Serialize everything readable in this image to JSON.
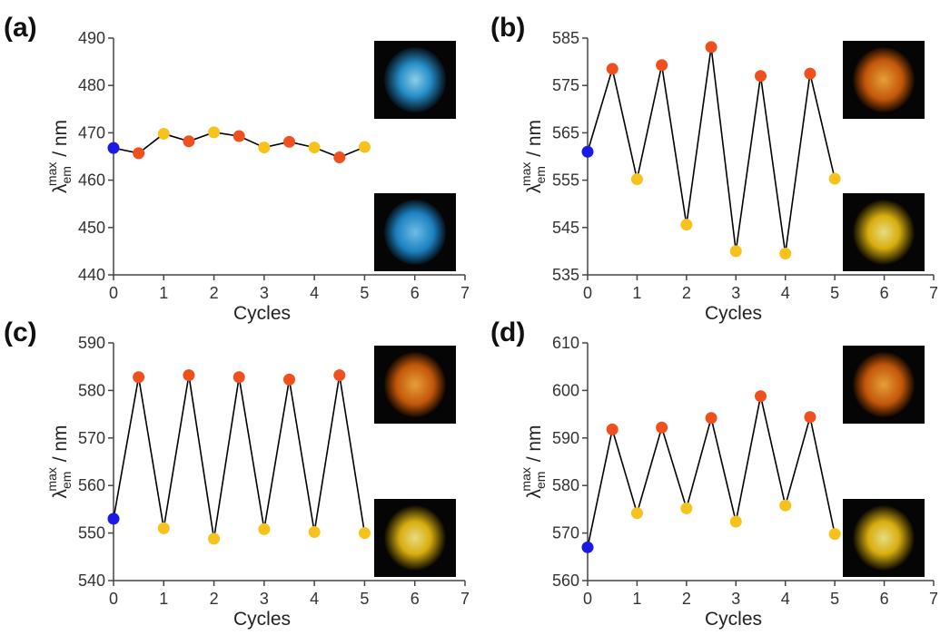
{
  "chart_data": [
    {
      "type": "line",
      "panel_label": "(a)",
      "xlabel": "Cycles",
      "ylabel_symbol": "λ",
      "ylabel_sub": "em",
      "ylabel_sup": "max",
      "ylabel_unit": " / nm",
      "x": [
        0,
        0.5,
        1,
        1.5,
        2,
        2.5,
        3,
        3.5,
        4,
        4.5,
        5
      ],
      "series": [
        {
          "color": "#000000",
          "values": [
            466.8,
            465.7,
            469.8,
            468.2,
            470.1,
            469.3,
            466.9,
            468.1,
            466.9,
            464.8,
            467.0
          ],
          "point_colors": [
            "#1a1ae6",
            "#f0501e",
            "#f7c21c",
            "#f0501e",
            "#f7c21c",
            "#f0501e",
            "#f7c21c",
            "#f0501e",
            "#f7c21c",
            "#f0501e",
            "#f7c21c"
          ]
        }
      ],
      "xlim": [
        0,
        7
      ],
      "xticks": [
        0,
        1,
        2,
        3,
        4,
        5,
        6,
        7
      ],
      "ylim": [
        440,
        490
      ],
      "yticks": [
        440,
        450,
        460,
        470,
        480,
        490
      ]
    },
    {
      "type": "line",
      "panel_label": "(b)",
      "xlabel": "Cycles",
      "ylabel_symbol": "λ",
      "ylabel_sub": "em",
      "ylabel_sup": "max",
      "ylabel_unit": " / nm",
      "x": [
        0,
        0.5,
        1,
        1.5,
        2,
        2.5,
        3,
        3.5,
        4,
        4.5,
        5
      ],
      "series": [
        {
          "color": "#000000",
          "values": [
            561.0,
            578.5,
            555.2,
            579.3,
            545.6,
            583.1,
            540.0,
            577.0,
            539.5,
            577.5,
            555.3
          ],
          "point_colors": [
            "#1a1ae6",
            "#f0501e",
            "#f7c21c",
            "#f0501e",
            "#f7c21c",
            "#f0501e",
            "#f7c21c",
            "#f0501e",
            "#f7c21c",
            "#f0501e",
            "#f7c21c"
          ]
        }
      ],
      "xlim": [
        0,
        7
      ],
      "xticks": [
        0,
        1,
        2,
        3,
        4,
        5,
        6,
        7
      ],
      "ylim": [
        535,
        585
      ],
      "yticks": [
        535,
        545,
        555,
        565,
        575,
        585
      ]
    },
    {
      "type": "line",
      "panel_label": "(c)",
      "xlabel": "Cycles",
      "ylabel_symbol": "λ",
      "ylabel_sub": "em",
      "ylabel_sup": "max",
      "ylabel_unit": " / nm",
      "x": [
        0,
        0.5,
        1,
        1.5,
        2,
        2.5,
        3,
        3.5,
        4,
        4.5,
        5
      ],
      "series": [
        {
          "color": "#000000",
          "values": [
            553.0,
            582.8,
            551.0,
            583.2,
            548.8,
            582.8,
            550.8,
            582.3,
            550.2,
            583.2,
            550.0
          ],
          "point_colors": [
            "#1a1ae6",
            "#f0501e",
            "#f7c21c",
            "#f0501e",
            "#f7c21c",
            "#f0501e",
            "#f7c21c",
            "#f0501e",
            "#f7c21c",
            "#f0501e",
            "#f7c21c"
          ]
        }
      ],
      "xlim": [
        0,
        7
      ],
      "xticks": [
        0,
        1,
        2,
        3,
        4,
        5,
        6,
        7
      ],
      "ylim": [
        540,
        590
      ],
      "yticks": [
        540,
        550,
        560,
        570,
        580,
        590
      ]
    },
    {
      "type": "line",
      "panel_label": "(d)",
      "xlabel": "Cycles",
      "ylabel_symbol": "λ",
      "ylabel_sub": "em",
      "ylabel_sup": "max",
      "ylabel_unit": " / nm",
      "x": [
        0,
        0.5,
        1,
        1.5,
        2,
        2.5,
        3,
        3.5,
        4,
        4.5,
        5
      ],
      "series": [
        {
          "color": "#000000",
          "values": [
            567.0,
            591.8,
            574.2,
            592.2,
            575.2,
            594.2,
            572.4,
            598.8,
            575.8,
            594.4,
            569.8
          ],
          "point_colors": [
            "#1a1ae6",
            "#f0501e",
            "#f7c21c",
            "#f0501e",
            "#f7c21c",
            "#f0501e",
            "#f7c21c",
            "#f0501e",
            "#f7c21c",
            "#f0501e",
            "#f7c21c"
          ]
        }
      ],
      "xlim": [
        0,
        7
      ],
      "xticks": [
        0,
        1,
        2,
        3,
        4,
        5,
        6,
        7
      ],
      "ylim": [
        560,
        610
      ],
      "yticks": [
        560,
        570,
        580,
        590,
        600,
        610
      ]
    }
  ]
}
